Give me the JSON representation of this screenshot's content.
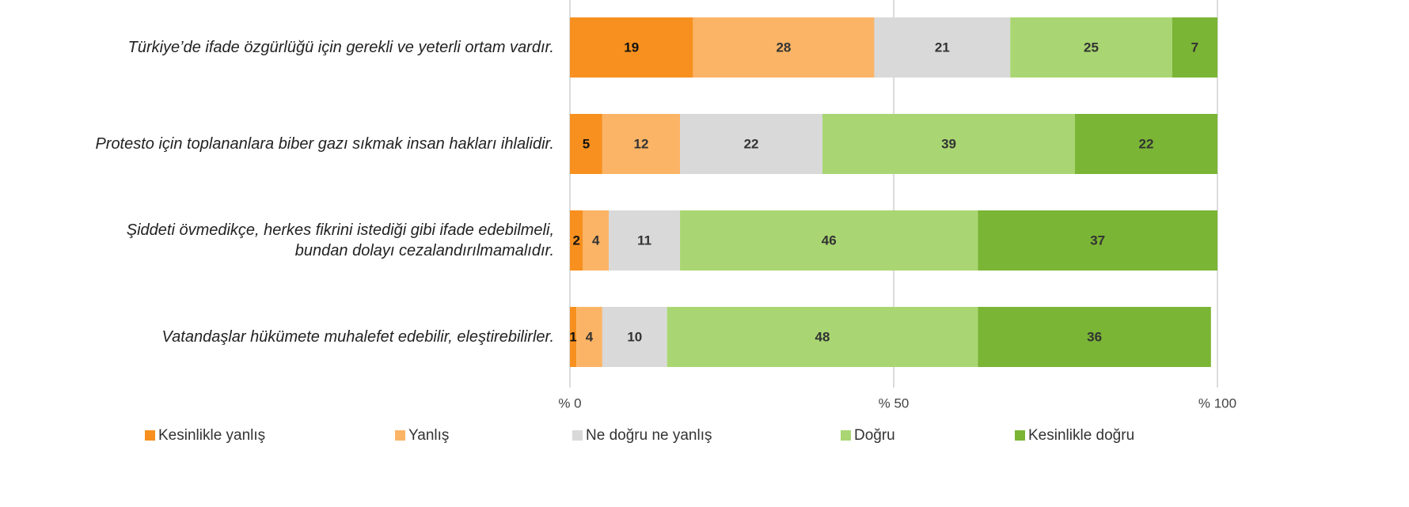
{
  "chart_data": {
    "type": "stacked-bar-horizontal",
    "categories": [
      "Türkiye’de ifade özgürlüğü için gerekli ve yeterli ortam vardır.",
      "Protesto için toplananlara biber gazı sıkmak insan hakları ihlalidir.",
      "Şiddeti övmedikçe, herkes fikrini istediği gibi ifade edebilmeli,\nbundan dolayı cezalandırılmamalıdır.",
      "Vatandaşlar hükümete muhalefet edebilir, eleştirebilirler."
    ],
    "series": [
      {
        "name": "Kesinlikle yanlış",
        "color": "#f7901e",
        "values": [
          19,
          5,
          2,
          1
        ]
      },
      {
        "name": "Yanlış",
        "color": "#fbb466",
        "values": [
          28,
          12,
          4,
          4
        ]
      },
      {
        "name": "Ne doğru ne yanlış",
        "color": "#d9d9d9",
        "values": [
          21,
          22,
          11,
          10
        ]
      },
      {
        "name": "Doğru",
        "color": "#a9d672",
        "values": [
          25,
          39,
          46,
          48
        ]
      },
      {
        "name": "Kesinlikle doğru",
        "color": "#7ab535",
        "values": [
          7,
          22,
          37,
          36
        ]
      }
    ],
    "xlim": [
      0,
      100
    ],
    "xticks": [
      {
        "value": 0,
        "label": "% 0"
      },
      {
        "value": 50,
        "label": "% 50"
      },
      {
        "value": 100,
        "label": "% 100"
      }
    ],
    "grid": true,
    "legend": "bottom"
  }
}
